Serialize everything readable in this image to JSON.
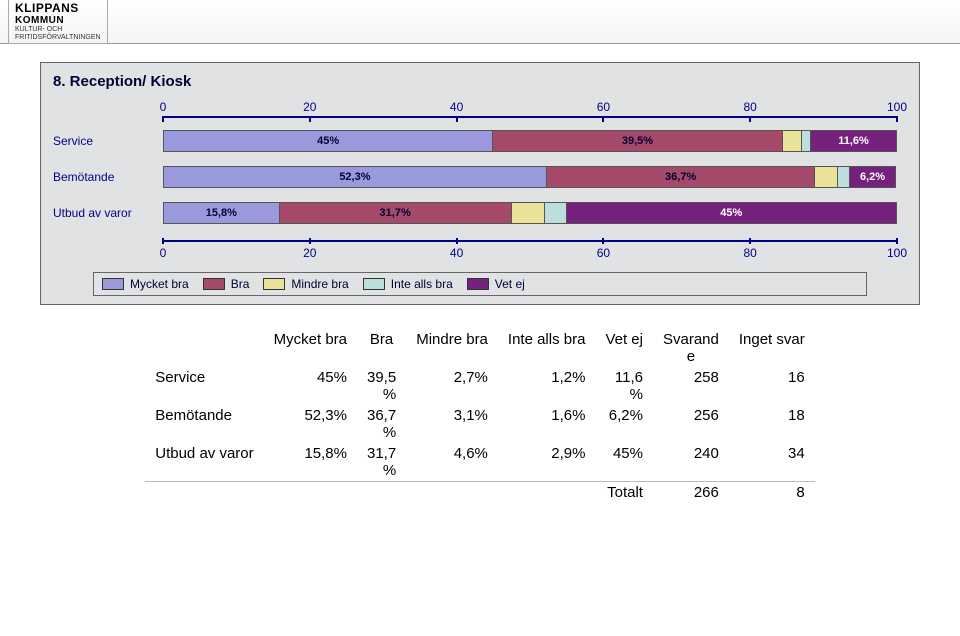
{
  "logo": {
    "name": "KLIPPANS",
    "sub1": "KOMMUN",
    "sub2": "KULTUR- OCH",
    "sub3": "FRITIDSFÖRVALTNINGEN"
  },
  "chart": {
    "title": "8. Reception/ Kiosk",
    "type": "stacked-bar-horizontal",
    "xmin": 0,
    "xmax": 100,
    "xtick_step": 20,
    "tick_labels": [
      "0",
      "20",
      "40",
      "60",
      "80",
      "100"
    ],
    "panel_bg": "#e1e2e3",
    "axis_color": "#000088",
    "categories": [
      {
        "label": "Service",
        "segments": [
          45.0,
          39.5,
          2.7,
          1.2,
          11.6
        ],
        "seg_labels": [
          "45%",
          "39,5%",
          "",
          "",
          "11,6%"
        ]
      },
      {
        "label": "Bemötande",
        "segments": [
          52.3,
          36.7,
          3.1,
          1.6,
          6.2
        ],
        "seg_labels": [
          "52,3%",
          "36,7%",
          "",
          "",
          "6,2%"
        ]
      },
      {
        "label": "Utbud av varor",
        "segments": [
          15.8,
          31.7,
          4.6,
          2.9,
          45.0
        ],
        "seg_labels": [
          "15,8%",
          "31,7%",
          "",
          "",
          "45%"
        ]
      }
    ],
    "series": [
      {
        "name": "Mycket bra",
        "color": "#9a99db"
      },
      {
        "name": "Bra",
        "color": "#a54a6a"
      },
      {
        "name": "Mindre bra",
        "color": "#e9e39a"
      },
      {
        "name": "Inte alls bra",
        "color": "#bcdedc"
      },
      {
        "name": "Vet ej",
        "color": "#77217f"
      }
    ]
  },
  "table": {
    "headers": [
      "",
      "Mycket bra",
      "Bra",
      "Mindre bra",
      "Inte alls bra",
      "Vet ej",
      "Svarand\ne",
      "Inget svar"
    ],
    "rows": [
      [
        "Service",
        "45%",
        "39,5\n%",
        "2,7%",
        "1,2%",
        "11,6\n%",
        "258",
        "16"
      ],
      [
        "Bemötande",
        "52,3%",
        "36,7\n%",
        "3,1%",
        "1,6%",
        "6,2%",
        "256",
        "18"
      ],
      [
        "Utbud av varor",
        "15,8%",
        "31,7\n%",
        "4,6%",
        "2,9%",
        "45%",
        "240",
        "34"
      ]
    ],
    "total_row": [
      "",
      "",
      "",
      "",
      "",
      "Totalt",
      "266",
      "8"
    ]
  }
}
